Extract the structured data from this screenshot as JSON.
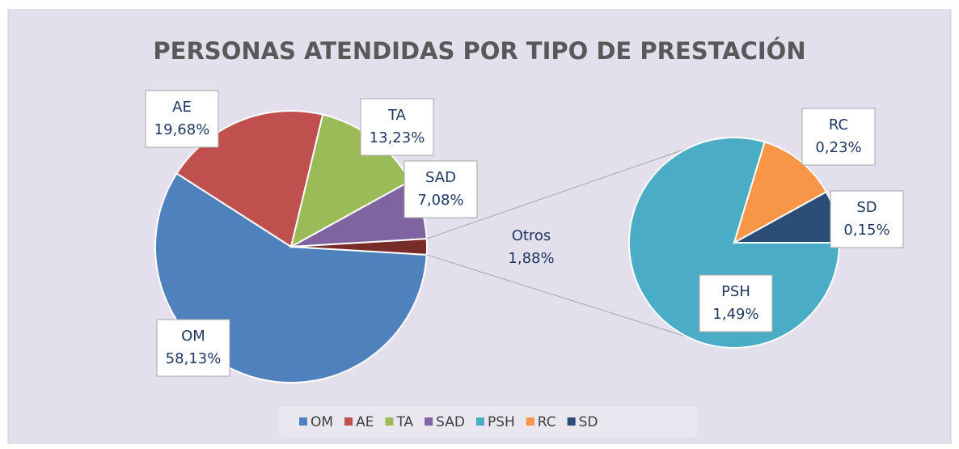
{
  "chart_data": {
    "type": "pie_of_pie",
    "title": "PERSONAS ATENDIDAS POR TIPO DE PRESTACIÓN",
    "categories": [
      "OM",
      "AE",
      "TA",
      "SAD"
    ],
    "values": [
      58.13,
      19.68,
      13.23,
      7.08
    ],
    "value_labels": [
      "58,13%",
      "19,68%",
      "13,23%",
      "7,08%"
    ],
    "colors": [
      "#4f81bd",
      "#c0504d",
      "#9bbb59",
      "#8064a2"
    ],
    "other": {
      "label": "Otros",
      "value": 1.88,
      "value_label": "1,88%",
      "color": "#772c2a"
    },
    "secondary": {
      "categories": [
        "PSH",
        "RC",
        "SD"
      ],
      "values": [
        1.49,
        0.23,
        0.15
      ],
      "value_labels": [
        "1,49%",
        "0,23%",
        "0,15%"
      ],
      "colors": [
        "#4bacc6",
        "#f79646",
        "#2c4d75"
      ]
    },
    "legend": "bottom"
  }
}
